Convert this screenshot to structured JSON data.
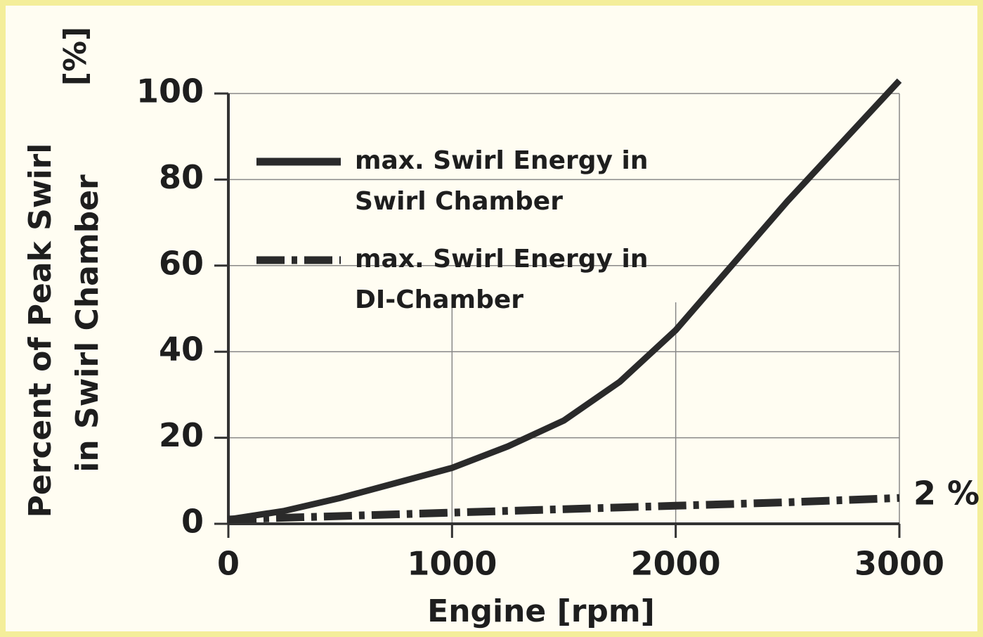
{
  "chart_data": {
    "type": "line",
    "ylabel": [
      "Percent of Peak Swirl",
      "in Swirl Chamber",
      "[%]"
    ],
    "xlabel": "Engine   [rpm]",
    "x": [
      0,
      250,
      500,
      750,
      1000,
      1250,
      1500,
      1750,
      2000,
      2250,
      2500,
      2750,
      3000
    ],
    "series": [
      {
        "name": "max. Swirl Energy in Swirl Chamber",
        "color": "#2a2a2a",
        "style": "solid",
        "values": [
          1,
          3,
          6,
          9.5,
          13,
          18,
          24,
          33,
          45,
          60,
          75,
          89,
          103
        ]
      },
      {
        "name": "max. Swirl Energy in DI-Chamber",
        "color": "#2a2a2a",
        "style": "dashdot",
        "values": [
          1,
          1.4,
          1.8,
          2.2,
          2.6,
          3,
          3.4,
          3.8,
          4.2,
          4.6,
          5,
          5.5,
          6
        ]
      }
    ],
    "annotations": [
      "2 %"
    ],
    "xlim": [
      0,
      3000
    ],
    "xticks": [
      0,
      1000,
      2000,
      3000
    ],
    "ylim": [
      0,
      100
    ],
    "yticks": [
      0,
      20,
      40,
      60,
      80,
      100
    ],
    "grid": true
  }
}
